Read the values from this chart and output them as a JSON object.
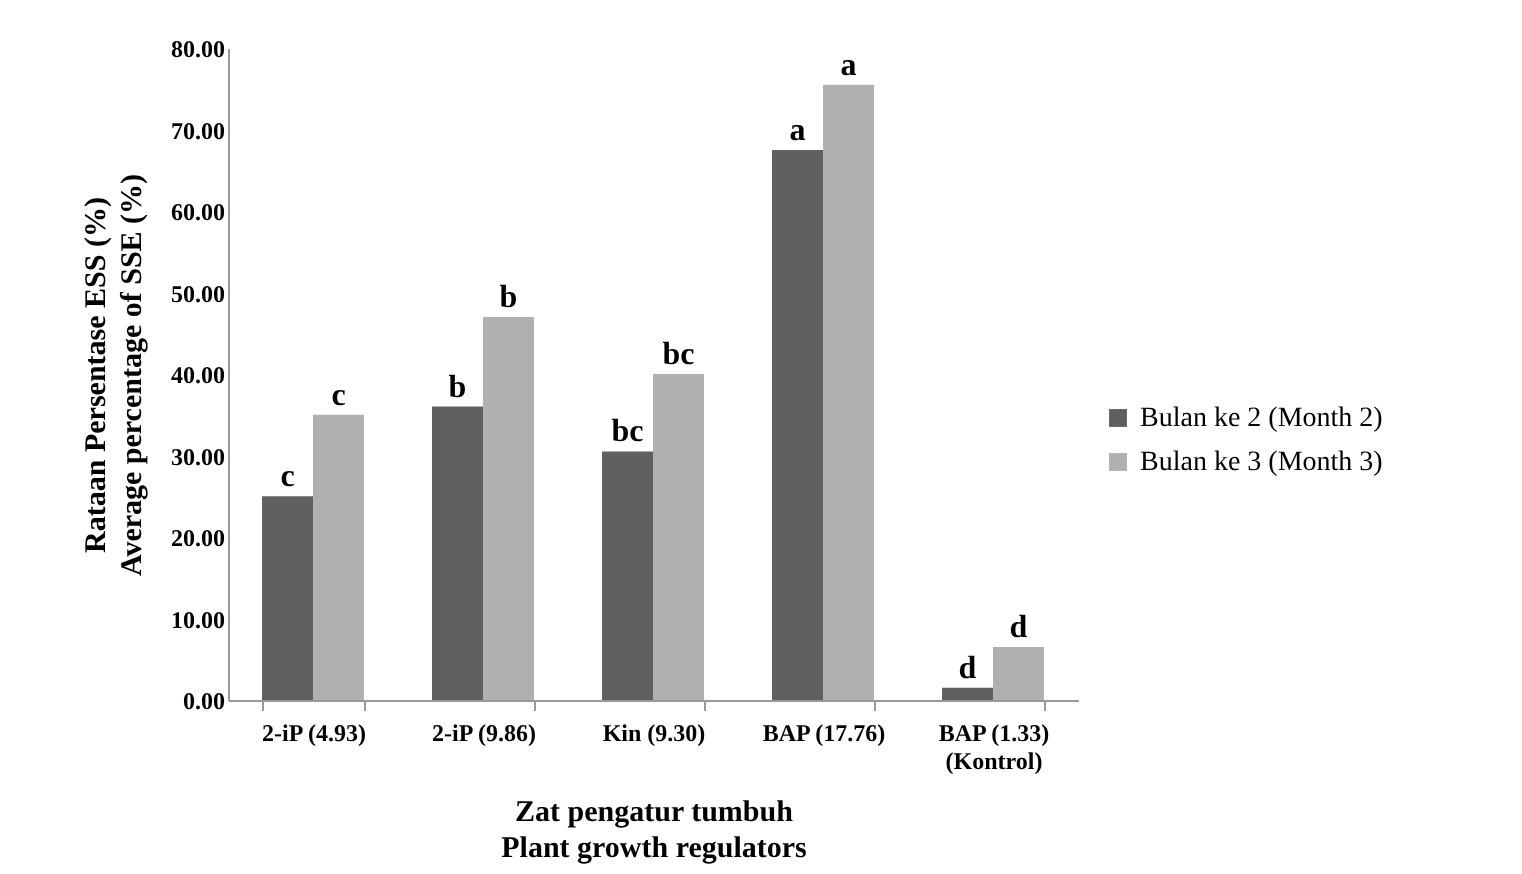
{
  "chart_data": {
    "type": "bar",
    "xlabel": "Zat pengatur tumbuh\nPlant growth regulators",
    "ylabel": "Rataan Persentase  ESS  (%)\nAverage percentage of SSE (%)",
    "categories": [
      "2-iP (4.93)",
      "2-iP (9.86)",
      "Kin (9.30)",
      "BAP (17.76)",
      "BAP (1.33)\n(Kontrol)"
    ],
    "series": [
      {
        "name": "Bulan ke 2 (Month 2)",
        "color": "#606060",
        "values": [
          25,
          36,
          30.5,
          67.5,
          1.5
        ],
        "value_labels": [
          "c",
          "b",
          "bc",
          "a",
          "d"
        ]
      },
      {
        "name": "Bulan ke 3 (Month 3)",
        "color": "#b0b0b0",
        "values": [
          35,
          47,
          40,
          75.5,
          6.5
        ],
        "value_labels": [
          "c",
          "b",
          "bc",
          "a",
          "d"
        ]
      }
    ],
    "ylim": [
      0,
      80
    ],
    "yticks": [
      {
        "value": 0,
        "label": "0.00"
      },
      {
        "value": 10,
        "label": "10.00"
      },
      {
        "value": 20,
        "label": "20.00"
      },
      {
        "value": 30,
        "label": "30.00"
      },
      {
        "value": 40,
        "label": "40.00"
      },
      {
        "value": 50,
        "label": "50.00"
      },
      {
        "value": 60,
        "label": "60.00"
      },
      {
        "value": 70,
        "label": "70.00"
      },
      {
        "value": 80,
        "label": "80.00"
      }
    ],
    "grid": false,
    "legend": "right"
  }
}
